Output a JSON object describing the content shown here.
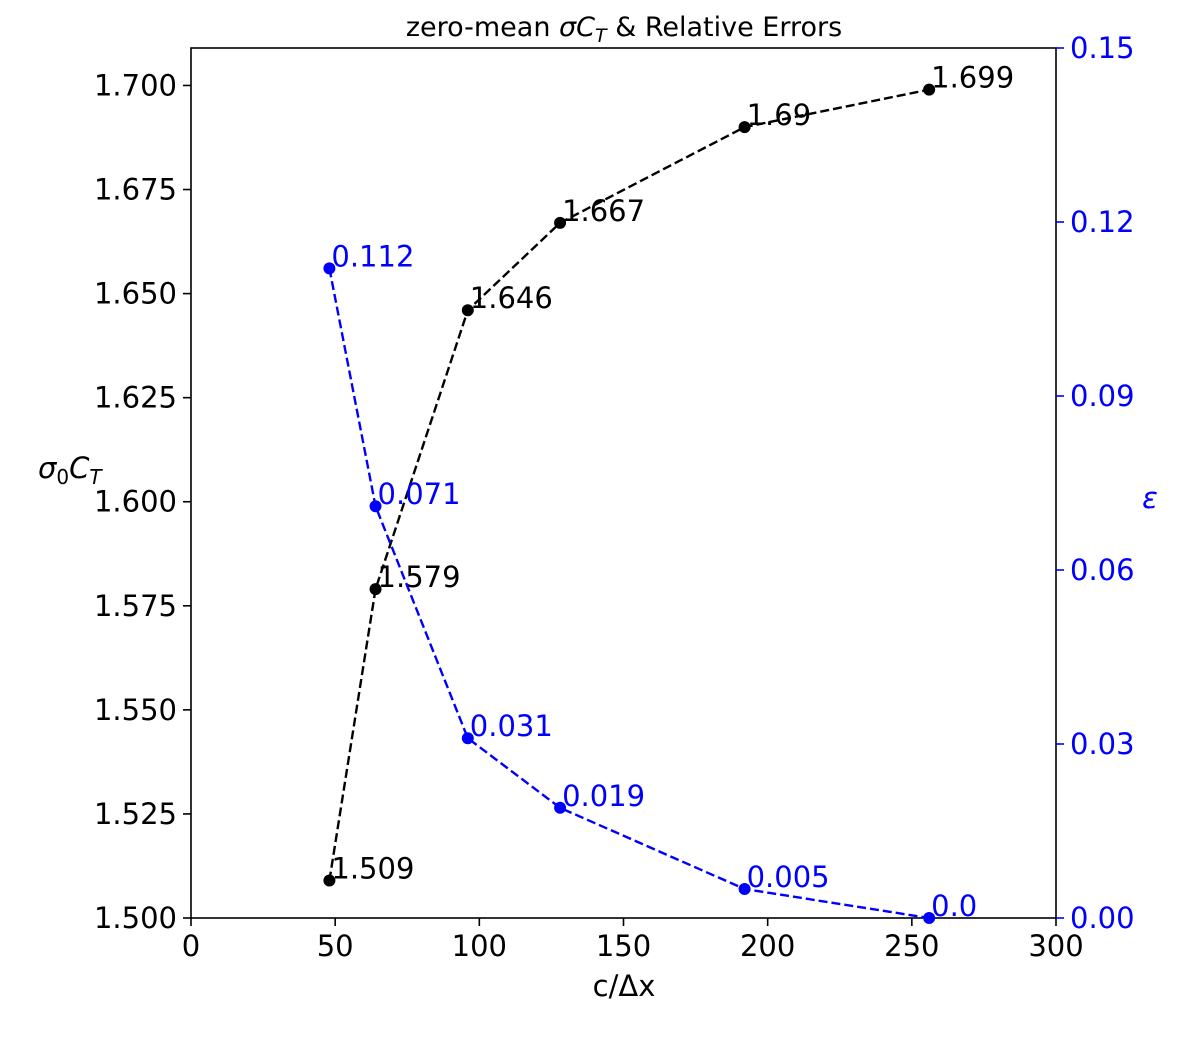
{
  "chart_data": {
    "type": "line",
    "title": "zero-mean σC_T & Relative Errors",
    "title_parts": {
      "prefix": "zero-mean ",
      "symbol": "σC",
      "subscript": "T",
      "suffix": " & Relative Errors"
    },
    "xlabel": "c/Δx",
    "ylabel_left": {
      "base": "σ",
      "sub1": "0",
      "base2": "C",
      "sub2": "T"
    },
    "ylabel_right": "ε",
    "xlim": [
      0,
      300
    ],
    "ylim_left": [
      1.5,
      1.709
    ],
    "ylim_right": [
      0,
      0.15
    ],
    "xticks": [
      0,
      50,
      100,
      150,
      200,
      250,
      300
    ],
    "xtick_labels": [
      "0",
      "50",
      "100",
      "150",
      "200",
      "250",
      "300"
    ],
    "yticks_left": [
      1.5,
      1.525,
      1.55,
      1.575,
      1.6,
      1.625,
      1.65,
      1.675,
      1.7
    ],
    "ytick_labels_left": [
      "1.500",
      "1.525",
      "1.550",
      "1.575",
      "1.600",
      "1.625",
      "1.650",
      "1.675",
      "1.700"
    ],
    "yticks_right": [
      0,
      0.03,
      0.06,
      0.09,
      0.12,
      0.15
    ],
    "ytick_labels_right": [
      "0.00",
      "0.03",
      "0.06",
      "0.09",
      "0.12",
      "0.15"
    ],
    "grid": false,
    "series": [
      {
        "axis": "left",
        "color": "#000000",
        "line_style": "dashed",
        "x": [
          48,
          64,
          96,
          128,
          192,
          256
        ],
        "y": [
          1.509,
          1.579,
          1.646,
          1.667,
          1.69,
          1.699
        ],
        "labels": [
          "1.509",
          "1.579",
          "1.646",
          "1.667",
          "1.69",
          "1.699"
        ]
      },
      {
        "axis": "right",
        "color": "#0000ff",
        "line_style": "dashed",
        "x": [
          48,
          64,
          96,
          128,
          192,
          256
        ],
        "y": [
          0.112,
          0.071,
          0.031,
          0.019,
          0.005,
          0.0
        ],
        "labels": [
          "0.112",
          "0.071",
          "0.031",
          "0.019",
          "0.005",
          "0.0"
        ]
      }
    ]
  }
}
